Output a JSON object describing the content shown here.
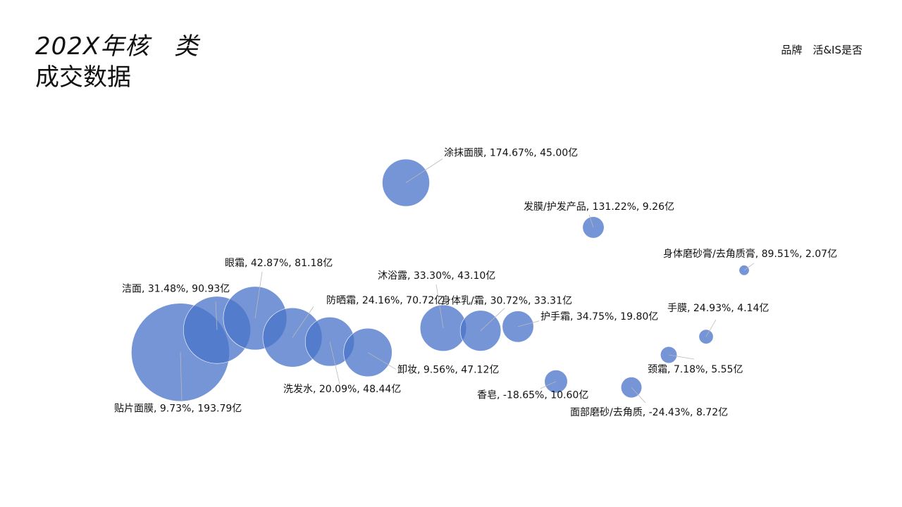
{
  "page": {
    "title_line1": "202X年核　类",
    "title_line2": "成交数据",
    "corner_note": "品牌　活&IS是否"
  },
  "chart_data": {
    "type": "bubble",
    "title": "",
    "xlabel": "",
    "ylabel": "",
    "grid": false,
    "legend": "none",
    "color": "#4a74c9",
    "x_field": "category_rank",
    "y_field": "growth_pct",
    "size_field": "sales_yi",
    "points": [
      {
        "name": "贴片面膜",
        "growth": "9.73%",
        "sales": "193.79亿",
        "growth_pct": 9.73,
        "sales_yi": 193.79,
        "label": "贴片面膜, 9.73%, 193.79亿"
      },
      {
        "name": "洁面",
        "growth": "31.48%",
        "sales": "90.93亿",
        "growth_pct": 31.48,
        "sales_yi": 90.93,
        "label": "洁面, 31.48%, 90.93亿"
      },
      {
        "name": "眼霜",
        "growth": "42.87%",
        "sales": "81.18亿",
        "growth_pct": 42.87,
        "sales_yi": 81.18,
        "label": "眼霜, 42.87%, 81.18亿"
      },
      {
        "name": "防晒霜",
        "growth": "24.16%",
        "sales": "70.72亿",
        "growth_pct": 24.16,
        "sales_yi": 70.72,
        "label": "防晒霜, 24.16%, 70.72亿"
      },
      {
        "name": "洗发水",
        "growth": "20.09%",
        "sales": "48.44亿",
        "growth_pct": 20.09,
        "sales_yi": 48.44,
        "label": "洗发水, 20.09%, 48.44亿"
      },
      {
        "name": "卸妆",
        "growth": "9.56%",
        "sales": "47.12亿",
        "growth_pct": 9.56,
        "sales_yi": 47.12,
        "label": "卸妆, 9.56%, 47.12亿"
      },
      {
        "name": "涂抹面膜",
        "growth": "174.67%",
        "sales": "45.00亿",
        "growth_pct": 174.67,
        "sales_yi": 45.0,
        "label": "涂抹面膜, 174.67%, 45.00亿"
      },
      {
        "name": "沐浴露",
        "growth": "33.30%",
        "sales": "43.10亿",
        "growth_pct": 33.3,
        "sales_yi": 43.1,
        "label": "沐浴露, 33.30%, 43.10亿"
      },
      {
        "name": "身体乳/霜",
        "growth": "30.72%",
        "sales": "33.31亿",
        "growth_pct": 30.72,
        "sales_yi": 33.31,
        "label": "身体乳/霜, 30.72%, 33.31亿"
      },
      {
        "name": "护手霜",
        "growth": "34.75%",
        "sales": "19.80亿",
        "growth_pct": 34.75,
        "sales_yi": 19.8,
        "label": "护手霜, 34.75%, 19.80亿"
      },
      {
        "name": "香皂",
        "growth": "-18.65%",
        "sales": "10.60亿",
        "growth_pct": -18.65,
        "sales_yi": 10.6,
        "label": "香皂, -18.65%, 10.60亿"
      },
      {
        "name": "发膜/护发产品",
        "growth": "131.22%",
        "sales": "9.26亿",
        "growth_pct": 131.22,
        "sales_yi": 9.26,
        "label": "发膜/护发产品, 131.22%, 9.26亿"
      },
      {
        "name": "面部磨砂/去角质",
        "growth": "-24.43%",
        "sales": "8.72亿",
        "growth_pct": -24.43,
        "sales_yi": 8.72,
        "label": "面部磨砂/去角质, -24.43%, 8.72亿"
      },
      {
        "name": "颈霜",
        "growth": "7.18%",
        "sales": "5.55亿",
        "growth_pct": 7.18,
        "sales_yi": 5.55,
        "label": "颈霜, 7.18%, 5.55亿"
      },
      {
        "name": "手膜",
        "growth": "24.93%",
        "sales": "4.14亿",
        "growth_pct": 24.93,
        "sales_yi": 4.14,
        "label": "手膜, 24.93%, 4.14亿"
      },
      {
        "name": "身体磨砂膏/去角质膏",
        "growth": "89.51%",
        "sales": "2.07亿",
        "growth_pct": 89.51,
        "sales_yi": 2.07,
        "label": "身体磨砂膏/去角质膏, 89.51%, 2.07亿"
      }
    ]
  }
}
